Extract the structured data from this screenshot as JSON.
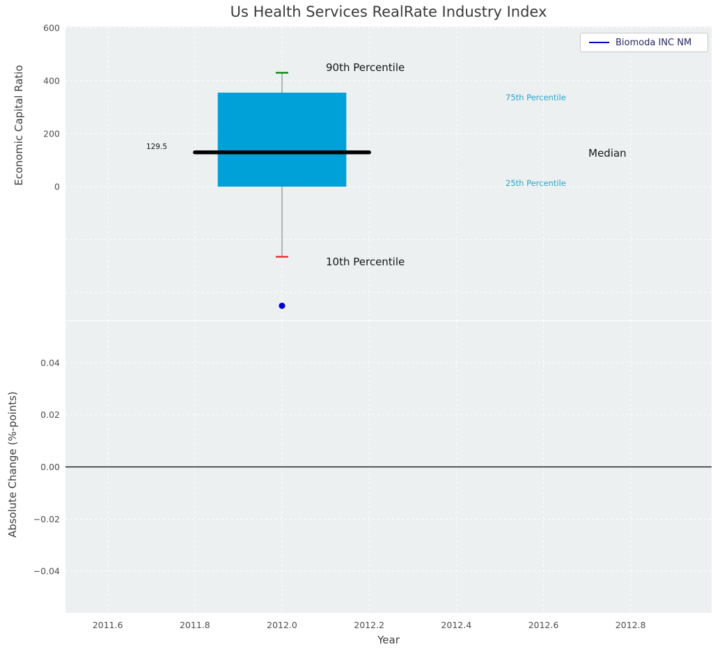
{
  "figure": {
    "plot_bg_color": "#ecf0f1",
    "grid_color": "#ffffff"
  },
  "legend": {
    "label": "Biomoda INC NM",
    "line_color": "#0000cc"
  },
  "chart_data": [
    {
      "type": "boxplot",
      "title": "Us Health Services RealRate Industry Index",
      "ylabel": "Economic Capital Ratio",
      "x_center": 2012,
      "box_half_width": 0.1475,
      "median_line_half_width": 0.2,
      "percentiles": {
        "p10": -265,
        "p25": 0,
        "median": 129.5,
        "p75": 355,
        "p90": 430
      },
      "outlier_point": {
        "name": "Biomoda INC NM",
        "x": 2012,
        "y": -450,
        "color": "#0000cc"
      },
      "annotations": {
        "p90": "90th Percentile",
        "p75": "75th Percentile",
        "median": "Median",
        "p25": "25th Percentile",
        "p10": "10th Percentile",
        "median_value": "129.5"
      },
      "box_color": "#00a0d8",
      "whisker_color": "#8a8a8a",
      "cap_top_color": "#008000",
      "cap_bottom_color": "#ee2222",
      "median_color": "#000000",
      "percentile_text_color": "#2aa5c8",
      "ylim": [
        -505,
        605
      ],
      "ytick_labels": [
        "600",
        "400",
        "200",
        "0"
      ],
      "ytick_values": [
        600,
        400,
        200,
        0
      ],
      "grid_y_values": [
        600,
        400,
        200,
        0,
        -200,
        -400
      ],
      "xlim": [
        2011.503,
        2012.986
      ],
      "legend_position": "upper right",
      "grid": "on"
    },
    {
      "type": "line",
      "ylabel": "Absolute Change (%-points)",
      "xlabel": "Year",
      "series": [
        {
          "name": "Biomoda INC NM",
          "color": "#0000cc",
          "x": [],
          "y": []
        }
      ],
      "zero_line_y": 0.0,
      "ylim": [
        -0.056,
        0.056
      ],
      "ytick_labels": [
        "0.04",
        "0.02",
        "0.00",
        "−0.02",
        "−0.04"
      ],
      "ytick_values": [
        0.04,
        0.02,
        0.0,
        -0.02,
        -0.04
      ],
      "xtick_labels": [
        "2011.6",
        "2011.8",
        "2012.0",
        "2012.2",
        "2012.4",
        "2012.6",
        "2012.8"
      ],
      "xtick_values": [
        2011.6,
        2011.8,
        2012.0,
        2012.2,
        2012.4,
        2012.6,
        2012.8
      ],
      "xlim": [
        2011.503,
        2012.986
      ],
      "grid": "on"
    }
  ]
}
